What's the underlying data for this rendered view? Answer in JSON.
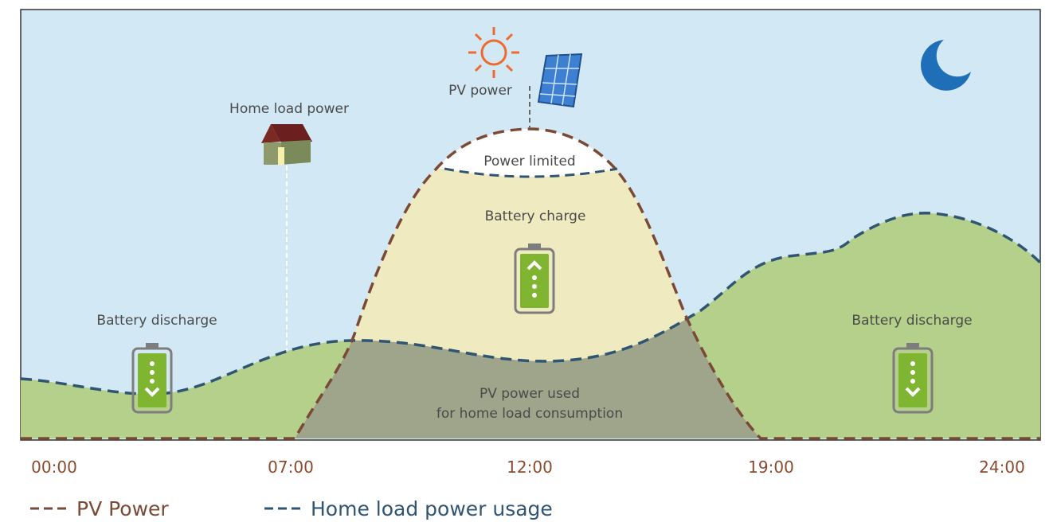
{
  "labels": {
    "pv_power": "PV power",
    "home_load_power": "Home load power",
    "power_limited": "Power limited",
    "battery_charge": "Battery charge",
    "battery_discharge_left": "Battery discharge",
    "battery_discharge_right": "Battery discharge",
    "pv_used_line1": "PV power used",
    "pv_used_line2": "for home load consumption"
  },
  "time_axis": [
    "00:00",
    "07:00",
    "12:00",
    "19:00",
    "24:00"
  ],
  "legend": [
    {
      "name": "PV Power",
      "color": "#7a4a36"
    },
    {
      "name": "Home load power usage",
      "color": "#2f5573"
    }
  ]
}
